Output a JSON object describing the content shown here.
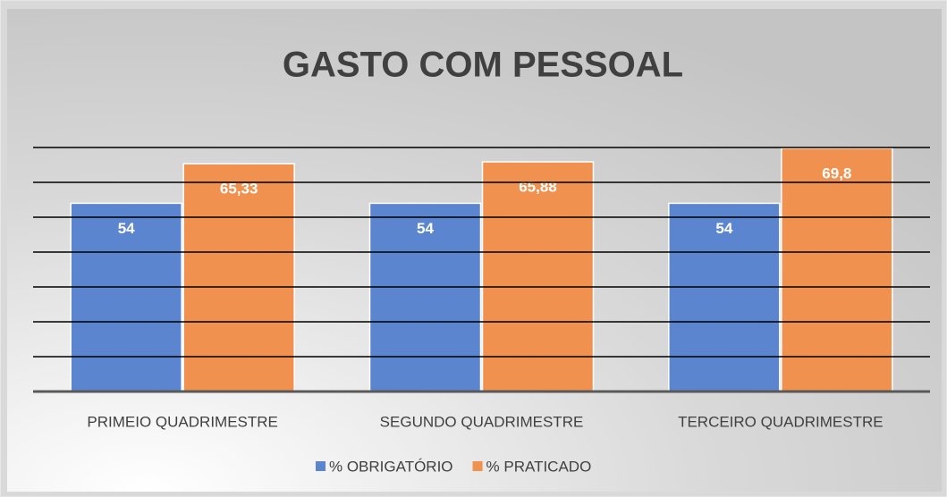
{
  "chart_data": {
    "type": "bar",
    "title": "GASTO COM PESSOAL",
    "categories": [
      "PRIMEIO QUADRIMESTRE",
      "SEGUNDO QUADRIMESTRE",
      "TERCEIRO QUADRIMESTRE"
    ],
    "series": [
      {
        "name": "% OBRIGATÓRIO",
        "color": "#5b86cf",
        "values": [
          54,
          54,
          54
        ]
      },
      {
        "name": "% PRATICADO",
        "color": "#f0914f",
        "values": [
          65.33,
          65.88,
          69.8
        ],
        "value_labels": [
          "65,33",
          "65,88",
          "69,8"
        ]
      }
    ],
    "ylim": [
      0,
      70
    ],
    "yticks": [
      0,
      10,
      20,
      30,
      40,
      50,
      60,
      70
    ],
    "grid": true,
    "legend": "bottom"
  }
}
